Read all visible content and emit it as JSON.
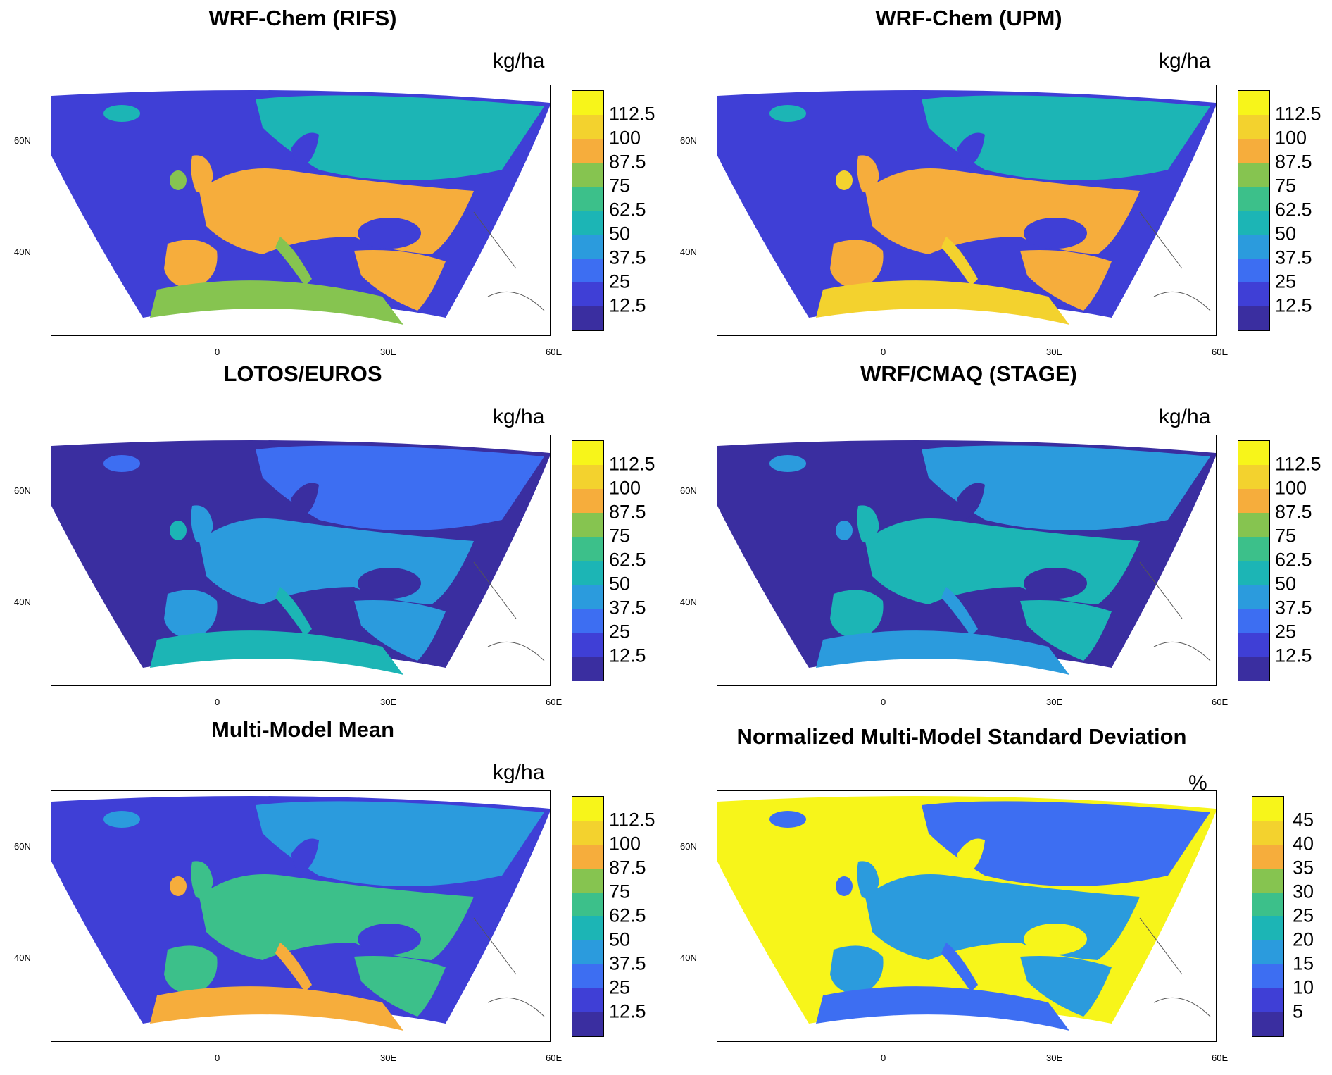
{
  "panels": [
    {
      "title": "WRF-Chem (RIFS)",
      "unit": "kg/ha",
      "scale": "kg"
    },
    {
      "title": "WRF-Chem (UPM)",
      "unit": "kg/ha",
      "scale": "kg"
    },
    {
      "title": "LOTOS/EUROS",
      "unit": "kg/ha",
      "scale": "kg"
    },
    {
      "title": "WRF/CMAQ (STAGE)",
      "unit": "kg/ha",
      "scale": "kg"
    },
    {
      "title": "Multi-Model Mean",
      "unit": "kg/ha",
      "scale": "kg"
    },
    {
      "title": "Normalized Multi-Model Standard Deviation",
      "unit": "%",
      "scale": "pct"
    }
  ],
  "scales": {
    "kg": {
      "labels": [
        "12.5",
        "25",
        "37.5",
        "50",
        "62.5",
        "75",
        "87.5",
        "100",
        "112.5"
      ]
    },
    "pct": {
      "labels": [
        "5",
        "10",
        "15",
        "20",
        "25",
        "30",
        "35",
        "40",
        "45"
      ]
    }
  },
  "colors": [
    "#3a2ea0",
    "#3f3fd6",
    "#3d6ef2",
    "#2b9bdd",
    "#1cb5b5",
    "#3cc08a",
    "#86c450",
    "#f6ad3c",
    "#f3d22e",
    "#f7f51a"
  ],
  "axes": {
    "lat_labels": [
      "60N",
      "40N"
    ],
    "lon_labels": [
      "0",
      "30E",
      "60E"
    ]
  }
}
